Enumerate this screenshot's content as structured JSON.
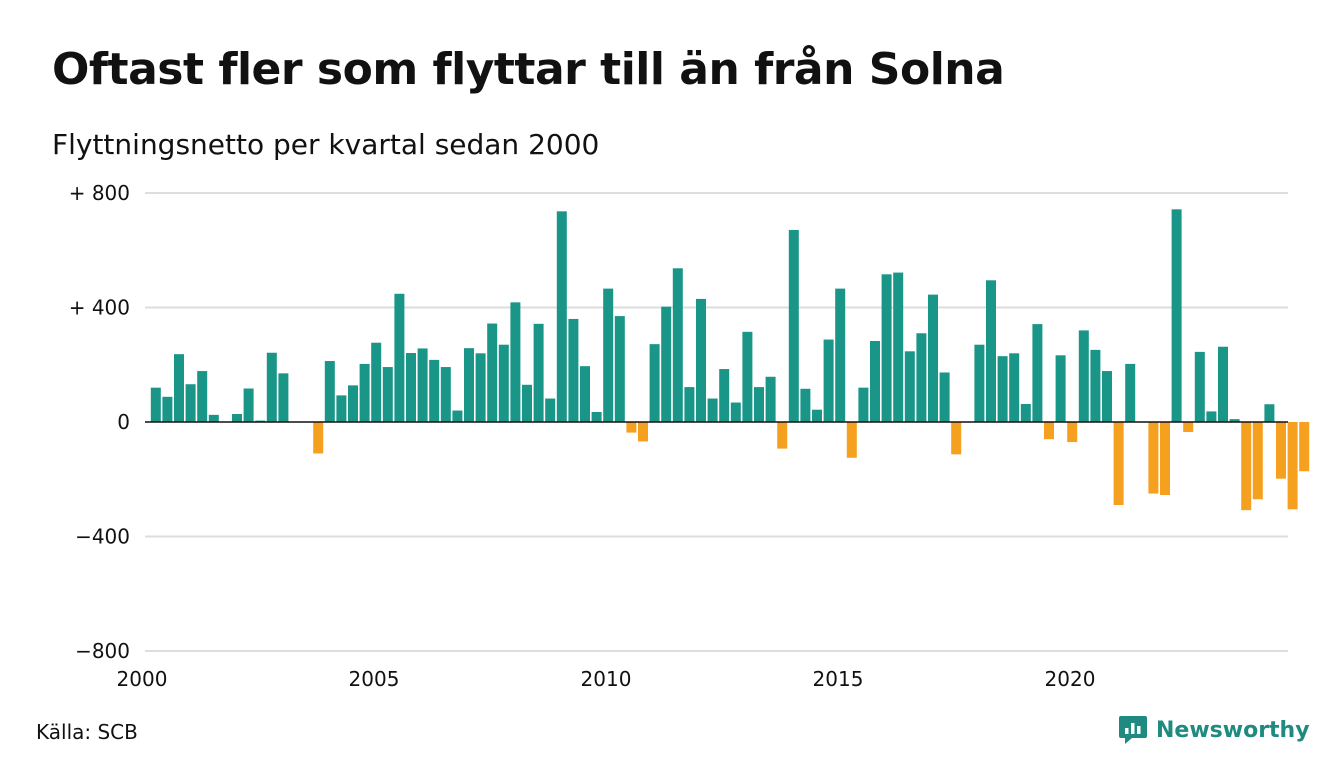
{
  "header": {
    "title": "Oftast fler som flyttar till än från Solna",
    "subtitle": "Flyttningsnetto per kvartal sedan 2000"
  },
  "footer": {
    "source": "Källa: SCB",
    "brand": "Newsworthy",
    "brand_color": "#1f8a80"
  },
  "chart_data": {
    "type": "bar",
    "title": "Oftast fler som flyttar till än från Solna",
    "subtitle": "Flyttningsnetto per kvartal sedan 2000",
    "xlabel": "",
    "ylabel": "",
    "ylim": [
      -800,
      800
    ],
    "y_ticks": [
      800,
      400,
      0,
      -400,
      -800
    ],
    "y_tick_labels": [
      "+ 800",
      "+ 400",
      "0",
      "−400",
      "−800"
    ],
    "x_tick_years": [
      2000,
      2005,
      2010,
      2015,
      2020
    ],
    "x_tick_labels": [
      "2000",
      "2005",
      "2010",
      "2015",
      "2020"
    ],
    "x_range_years": [
      2000,
      2024.75
    ],
    "grid": true,
    "colors": {
      "positive": "#1a9688",
      "negative": "#f5a01e",
      "grid": "#dddddd",
      "axis": "#111111"
    },
    "categories": [
      "2000 K1",
      "2000 K2",
      "2000 K3",
      "2000 K4",
      "2001 K1",
      "2001 K2",
      "2001 K3",
      "2001 K4",
      "2002 K1",
      "2002 K2",
      "2002 K3",
      "2002 K4",
      "2003 K1",
      "2003 K2",
      "2003 K3",
      "2003 K4",
      "2004 K1",
      "2004 K2",
      "2004 K3",
      "2004 K4",
      "2005 K1",
      "2005 K2",
      "2005 K3",
      "2005 K4",
      "2006 K1",
      "2006 K2",
      "2006 K3",
      "2006 K4",
      "2007 K1",
      "2007 K2",
      "2007 K3",
      "2007 K4",
      "2008 K1",
      "2008 K2",
      "2008 K3",
      "2008 K4",
      "2009 K1",
      "2009 K2",
      "2009 K3",
      "2009 K4",
      "2010 K1",
      "2010 K2",
      "2010 K3",
      "2010 K4",
      "2011 K1",
      "2011 K2",
      "2011 K3",
      "2011 K4",
      "2012 K1",
      "2012 K2",
      "2012 K3",
      "2012 K4",
      "2013 K1",
      "2013 K2",
      "2013 K3",
      "2013 K4",
      "2014 K1",
      "2014 K2",
      "2014 K3",
      "2014 K4",
      "2015 K1",
      "2015 K2",
      "2015 K3",
      "2015 K4",
      "2016 K1",
      "2016 K2",
      "2016 K3",
      "2016 K4",
      "2017 K1",
      "2017 K2",
      "2017 K3",
      "2017 K4",
      "2018 K1",
      "2018 K2",
      "2018 K3",
      "2018 K4",
      "2019 K1",
      "2019 K2",
      "2019 K3",
      "2019 K4",
      "2020 K1",
      "2020 K2",
      "2020 K3",
      "2020 K4",
      "2021 K1",
      "2021 K2",
      "2021 K3",
      "2021 K4",
      "2022 K1",
      "2022 K2",
      "2022 K3",
      "2022 K4",
      "2023 K1",
      "2023 K2",
      "2023 K3",
      "2023 K4",
      "2024 K1",
      "2024 K2",
      "2024 K3",
      "2024 K4"
    ],
    "values": [
      120,
      88,
      237,
      132,
      178,
      25,
      0,
      28,
      117,
      5,
      242,
      170,
      0,
      0,
      -110,
      213,
      93,
      128,
      203,
      277,
      192,
      448,
      241,
      257,
      217,
      192,
      40,
      258,
      240,
      344,
      270,
      418,
      130,
      343,
      82,
      736,
      360,
      195,
      35,
      466,
      370,
      -37,
      -68,
      272,
      403,
      537,
      122,
      430,
      82,
      185,
      68,
      315,
      122,
      158,
      -93,
      671,
      116,
      43,
      288,
      466,
      -125,
      120,
      283,
      516,
      522,
      247,
      310,
      445,
      173,
      -113,
      0,
      270,
      495,
      230,
      240,
      63,
      342,
      -60,
      233,
      -70,
      320,
      252,
      178,
      -290,
      203,
      0,
      -250,
      -255,
      743,
      -35,
      245,
      37,
      263,
      10,
      -308,
      -270,
      62,
      -198,
      -305,
      -172
    ]
  }
}
